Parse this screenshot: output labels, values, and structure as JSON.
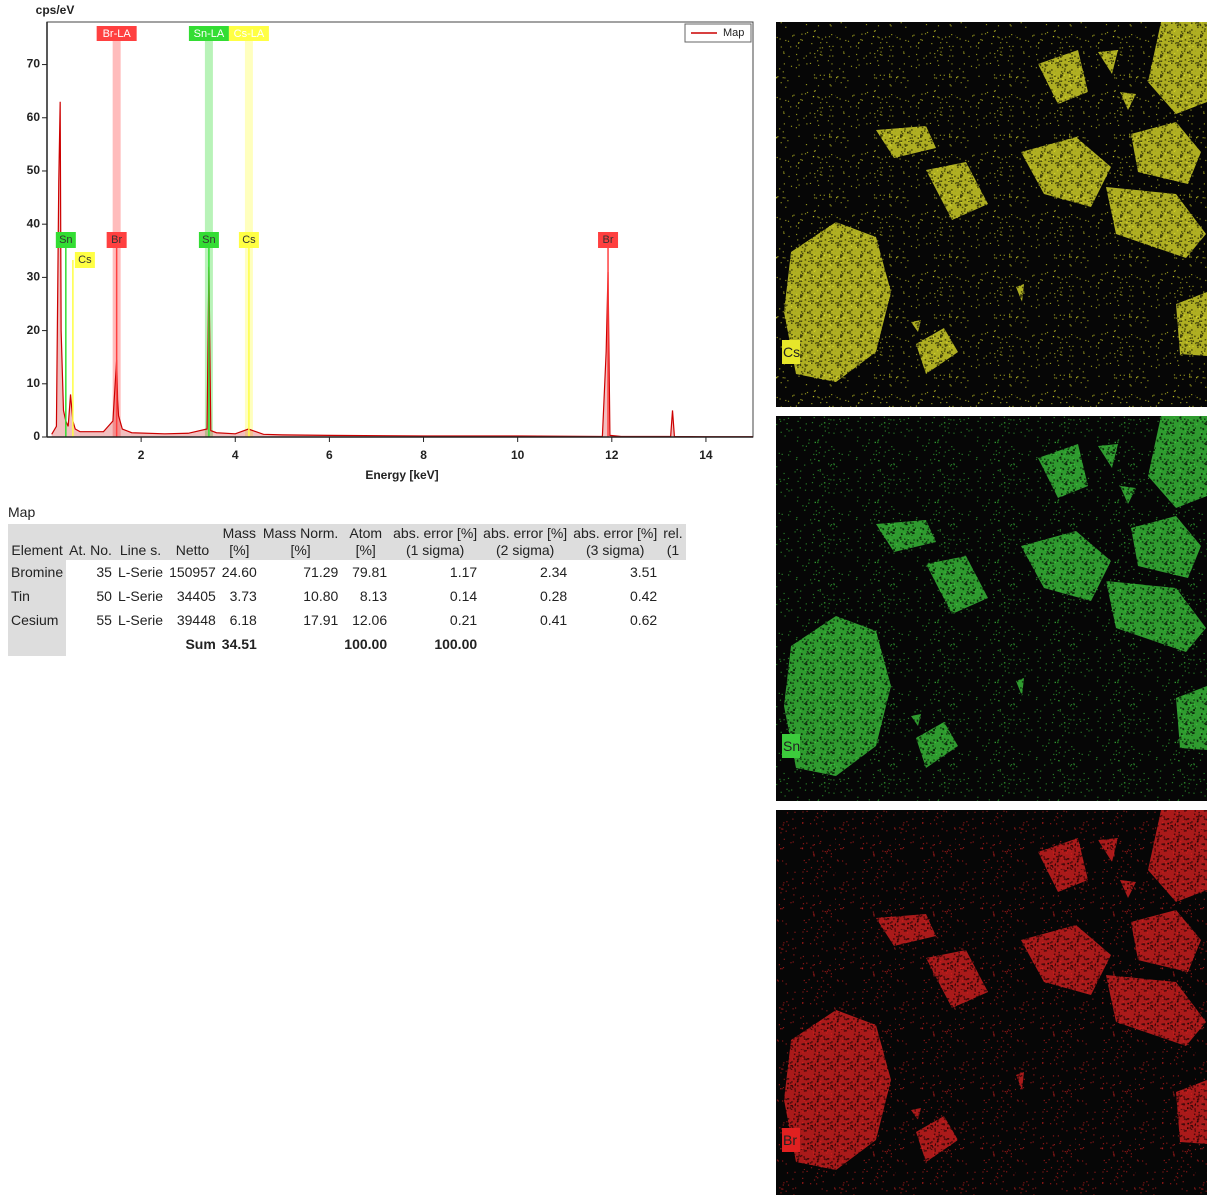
{
  "chart_data": {
    "type": "line",
    "y_label": "cps/eV",
    "x_label": "Energy [keV]",
    "xlim": [
      0,
      15
    ],
    "xticks": [
      2,
      4,
      6,
      8,
      10,
      12,
      14
    ],
    "ylim": [
      0,
      78
    ],
    "yticks": [
      0,
      10,
      20,
      30,
      40,
      50,
      60,
      70
    ],
    "x": [
      0.1,
      0.2,
      0.25,
      0.28,
      0.3,
      0.35,
      0.4,
      0.45,
      0.5,
      0.55,
      0.6,
      0.7,
      0.9,
      1.2,
      1.4,
      1.48,
      1.5,
      1.52,
      1.6,
      1.8,
      2.5,
      3.0,
      3.4,
      3.44,
      3.48,
      3.6,
      4.0,
      4.28,
      4.6,
      5,
      6,
      8,
      10,
      11.8,
      11.88,
      11.92,
      11.96,
      12.2,
      13.25,
      13.29,
      13.33,
      14,
      15
    ],
    "series": [
      {
        "name": "Map",
        "color": "#cc0000",
        "values": [
          0.5,
          2,
          48,
          63,
          20,
          5,
          3,
          2,
          8,
          3,
          1.5,
          1,
          1,
          1,
          3,
          14.5,
          7,
          4,
          1.5,
          0.8,
          0.6,
          0.7,
          1.5,
          32,
          1.2,
          0.8,
          0.6,
          1.5,
          0.5,
          0.4,
          0.3,
          0.2,
          0.2,
          0.1,
          16,
          31,
          0.3,
          0.1,
          0.1,
          5,
          0.1,
          0.05,
          0.05
        ]
      }
    ],
    "legend": "top-right",
    "line_markers": [
      {
        "label": "Br-LA",
        "x": 1.48,
        "color": "#ff4040"
      },
      {
        "label": "Sn-LA",
        "x": 3.44,
        "color": "#33dd33"
      },
      {
        "label": "Cs-LA",
        "x": 4.29,
        "color": "#ffff44"
      }
    ],
    "peak_labels": [
      {
        "label": "Sn",
        "x": 0.4,
        "color": "#33dd33"
      },
      {
        "label": "Cs",
        "x": 0.55,
        "color": "#ffff44"
      },
      {
        "label": "Br",
        "x": 1.48,
        "color": "#ff4040"
      },
      {
        "label": "Sn",
        "x": 3.44,
        "color": "#33dd33"
      },
      {
        "label": "Cs",
        "x": 4.29,
        "color": "#ffff44"
      },
      {
        "label": "Br",
        "x": 11.92,
        "color": "#ff4040"
      }
    ]
  },
  "table": {
    "title": "Map",
    "headers": [
      [
        "Element"
      ],
      [
        "At. No."
      ],
      [
        "Line s."
      ],
      [
        "Netto"
      ],
      [
        "Mass",
        "[%]"
      ],
      [
        "Mass Norm.",
        "[%]"
      ],
      [
        "Atom",
        "[%]"
      ],
      [
        "abs. error [%]",
        "(1 sigma)"
      ],
      [
        "abs. error [%]",
        "(2 sigma)"
      ],
      [
        "abs. error [%]",
        "(3 sigma)"
      ],
      [
        "rel.",
        "(1"
      ]
    ],
    "rows": [
      [
        "Bromine",
        "35",
        "L-Serie",
        "150957",
        "24.60",
        "71.29",
        "79.81",
        "1.17",
        "2.34",
        "3.51"
      ],
      [
        "Tin",
        "50",
        "L-Serie",
        "34405",
        "3.73",
        "10.80",
        "8.13",
        "0.14",
        "0.28",
        "0.42"
      ],
      [
        "Cesium",
        "55",
        "L-Serie",
        "39448",
        "6.18",
        "17.91",
        "12.06",
        "0.21",
        "0.41",
        "0.62"
      ]
    ],
    "sum_row": [
      "Sum",
      "34.51",
      "100.00",
      "100.00"
    ]
  },
  "maps": [
    {
      "label": "Cs",
      "color": "#e6e62a"
    },
    {
      "label": "Sn",
      "color": "#3ccc3c"
    },
    {
      "label": "Br",
      "color": "#e02020"
    }
  ]
}
